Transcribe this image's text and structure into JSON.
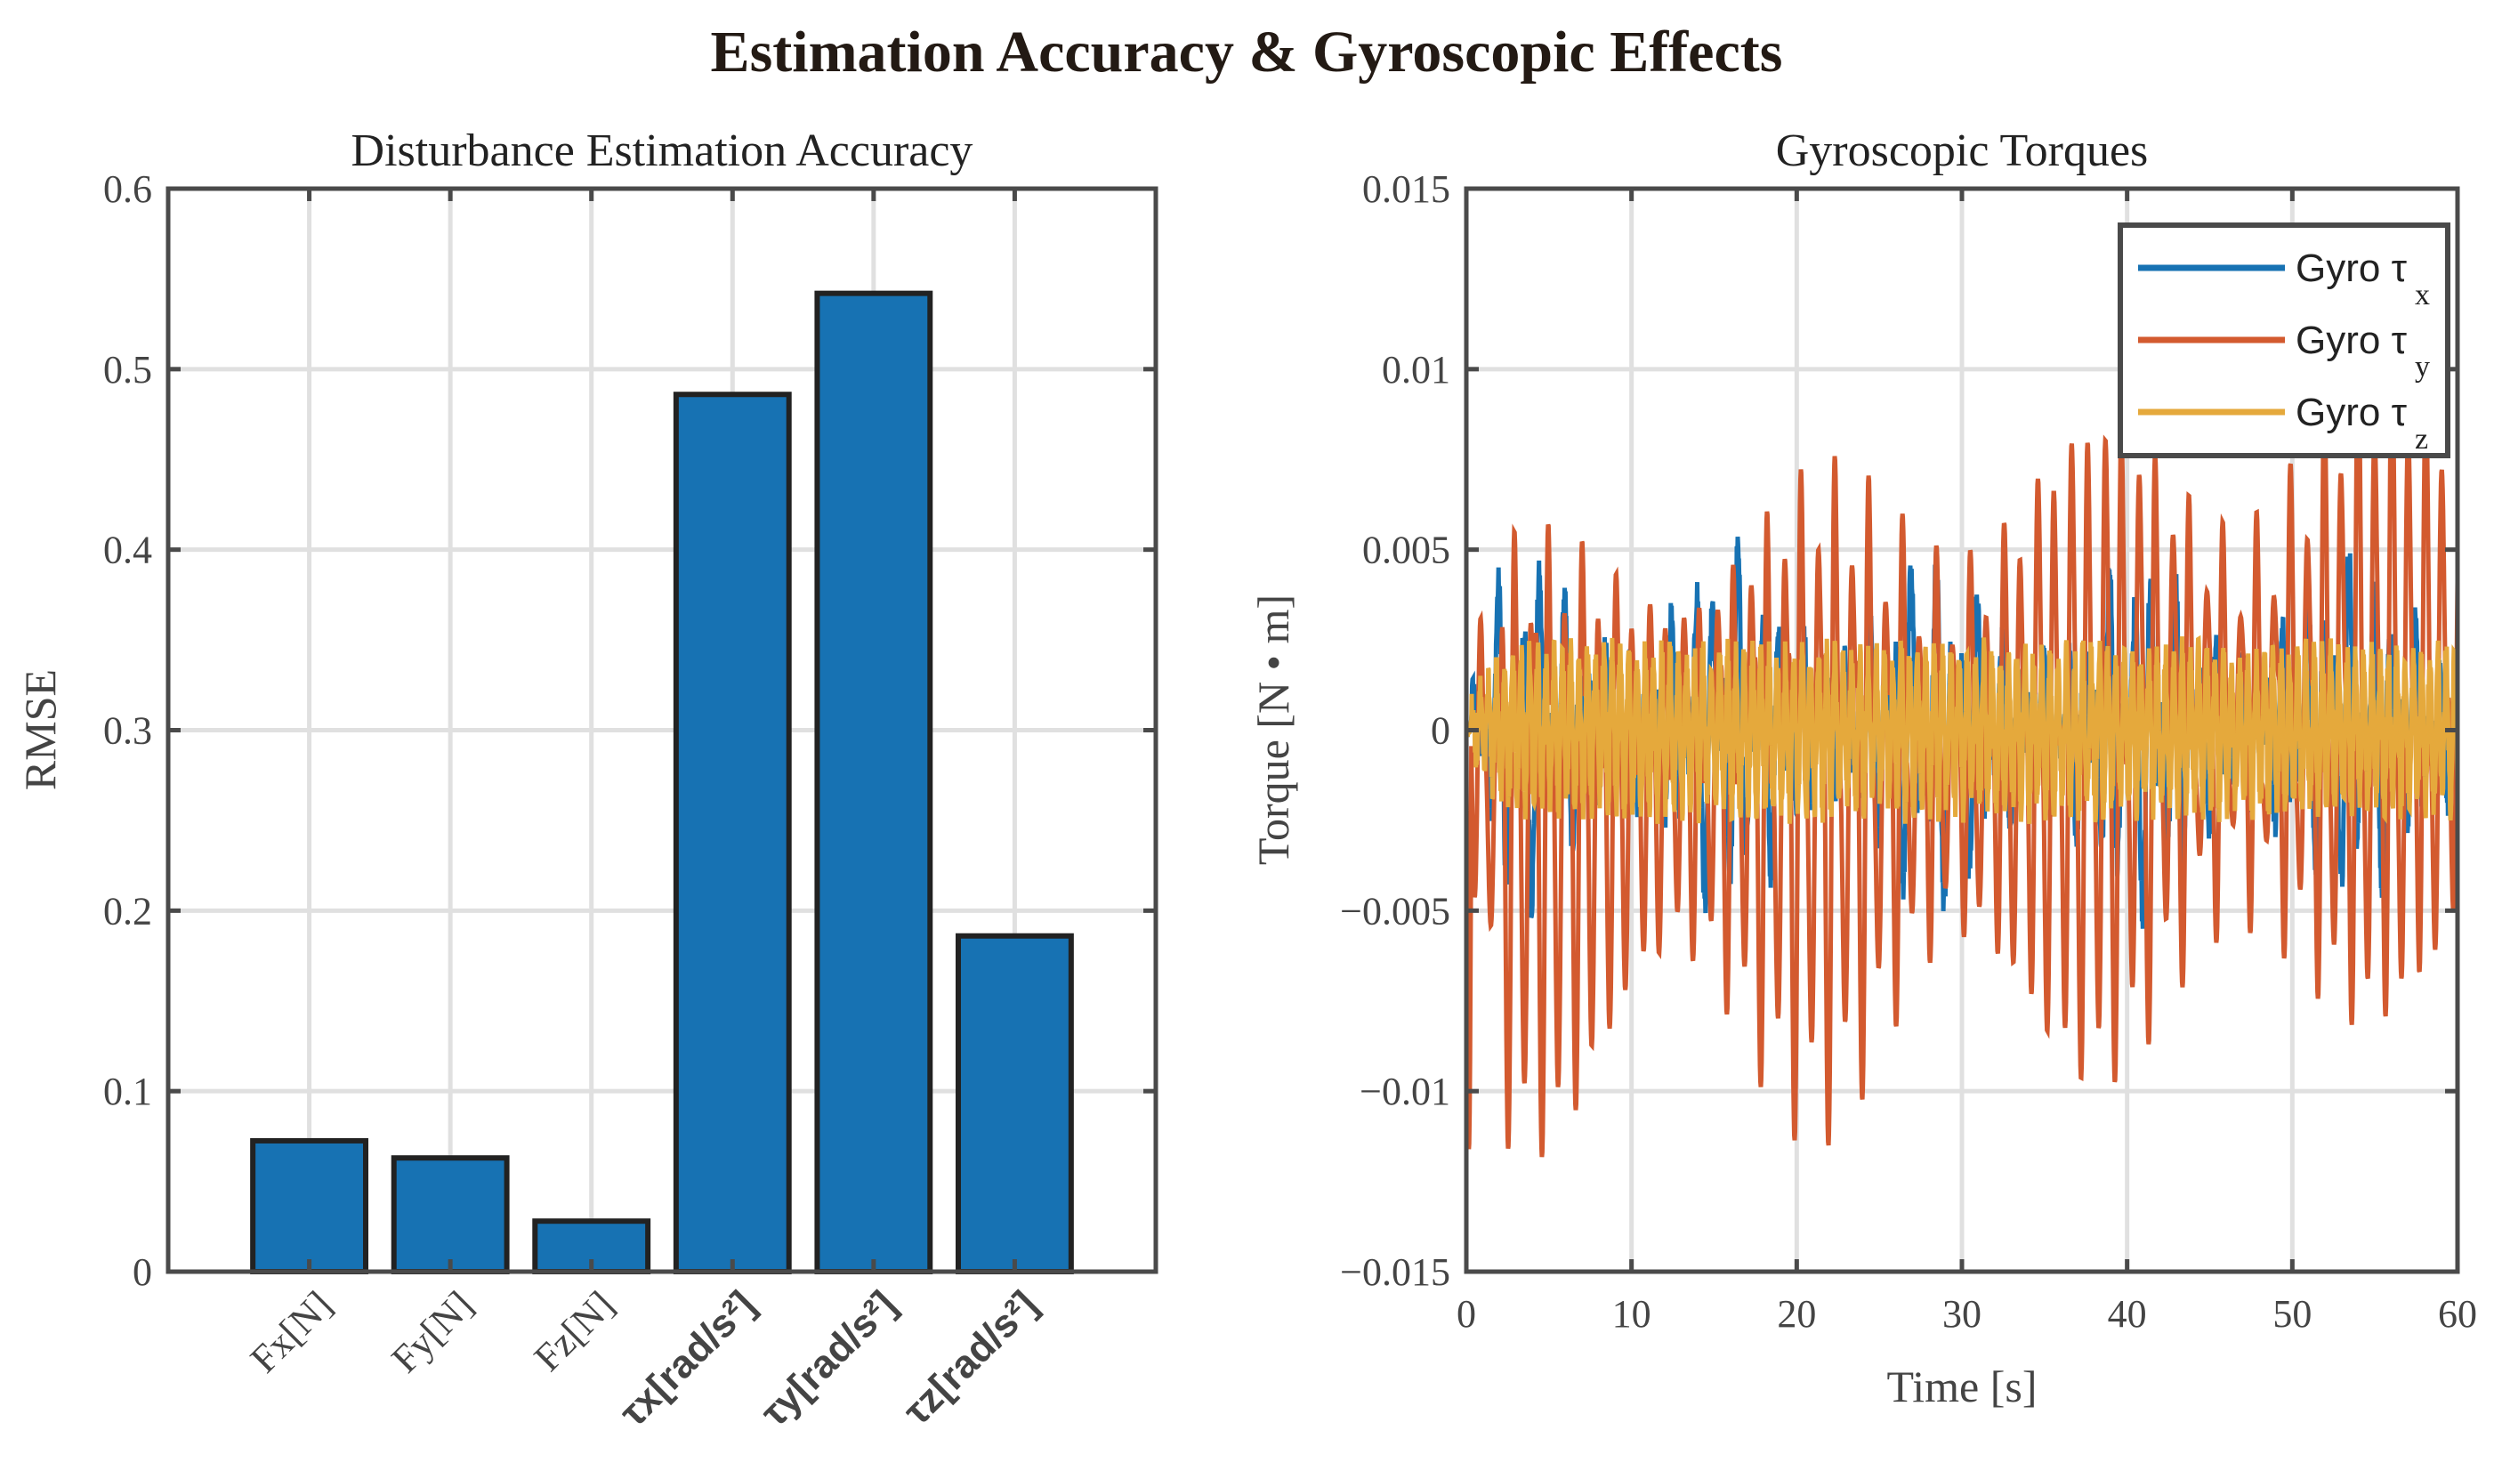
{
  "figure_title": "Estimation Accuracy & Gyroscopic Effects",
  "chart_data": [
    {
      "type": "bar",
      "title": "Disturbance Estimation Accuracy",
      "xlabel": "",
      "ylabel": "RMSE",
      "ylim": [
        0,
        0.6
      ],
      "yticks": [
        "0",
        "0.1",
        "0.2",
        "0.3",
        "0.4",
        "0.5",
        "0.6"
      ],
      "categories": [
        "Fx[N]",
        "Fy[N]",
        "Fz[N]",
        "τx[rad/s²]",
        "τy[rad/s²]",
        "τz[rad/s²]"
      ],
      "values": [
        0.0725,
        0.063,
        0.028,
        0.486,
        0.542,
        0.186
      ],
      "bar_color": "#1772b3",
      "grid": true
    },
    {
      "type": "line",
      "title": "Gyroscopic Torques",
      "xlabel": "Time [s]",
      "ylabel": "Torque [N • m]",
      "xlim": [
        0,
        60
      ],
      "ylim": [
        -0.015,
        0.015
      ],
      "xticks": [
        "0",
        "10",
        "20",
        "30",
        "40",
        "50",
        "60"
      ],
      "yticks": [
        "−0.015",
        "−0.01",
        "−0.005",
        "0",
        "0.005",
        "0.01",
        "0.015"
      ],
      "legend_position": "top-right",
      "grid": true,
      "series": [
        {
          "name": "Gyro τ",
          "sub": "x",
          "color": "#1772b3",
          "approx_amplitude": 0.005,
          "approx_period_s": 1.0
        },
        {
          "name": "Gyro τ",
          "sub": "y",
          "color": "#d35a2f",
          "approx_amplitude": 0.011,
          "approx_period_s": 1.0
        },
        {
          "name": "Gyro τ",
          "sub": "z",
          "color": "#e5a93c",
          "approx_amplitude": 0.002,
          "approx_period_s": 0.5
        }
      ]
    }
  ]
}
